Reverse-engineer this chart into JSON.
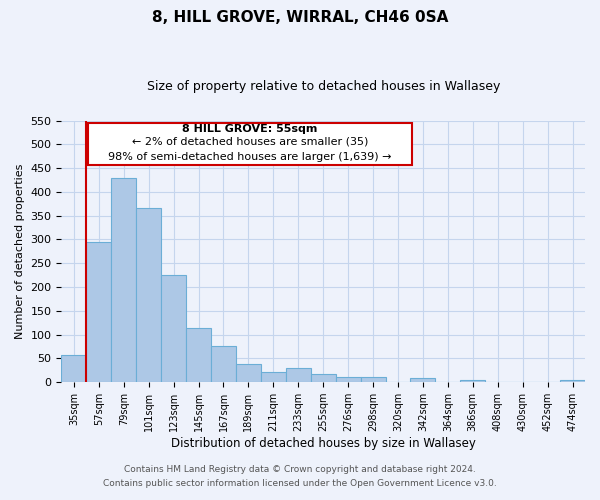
{
  "title": "8, HILL GROVE, WIRRAL, CH46 0SA",
  "subtitle": "Size of property relative to detached houses in Wallasey",
  "xlabel": "Distribution of detached houses by size in Wallasey",
  "ylabel": "Number of detached properties",
  "bar_labels": [
    "35sqm",
    "57sqm",
    "79sqm",
    "101sqm",
    "123sqm",
    "145sqm",
    "167sqm",
    "189sqm",
    "211sqm",
    "233sqm",
    "255sqm",
    "276sqm",
    "298sqm",
    "320sqm",
    "342sqm",
    "364sqm",
    "386sqm",
    "408sqm",
    "430sqm",
    "452sqm",
    "474sqm"
  ],
  "bar_values": [
    57,
    295,
    430,
    367,
    226,
    113,
    76,
    38,
    22,
    30,
    18,
    10,
    11,
    0,
    9,
    0,
    5,
    0,
    0,
    0,
    5
  ],
  "bar_color": "#adc8e6",
  "bar_edge_color": "#6baed6",
  "highlight_color": "#cc0000",
  "annotation_title": "8 HILL GROVE: 55sqm",
  "annotation_line1": "← 2% of detached houses are smaller (35)",
  "annotation_line2": "98% of semi-detached houses are larger (1,639) →",
  "ylim": [
    0,
    550
  ],
  "yticks": [
    0,
    50,
    100,
    150,
    200,
    250,
    300,
    350,
    400,
    450,
    500,
    550
  ],
  "footer_line1": "Contains HM Land Registry data © Crown copyright and database right 2024.",
  "footer_line2": "Contains public sector information licensed under the Open Government Licence v3.0.",
  "bg_color": "#eef2fb",
  "grid_color": "#c5d5ed"
}
